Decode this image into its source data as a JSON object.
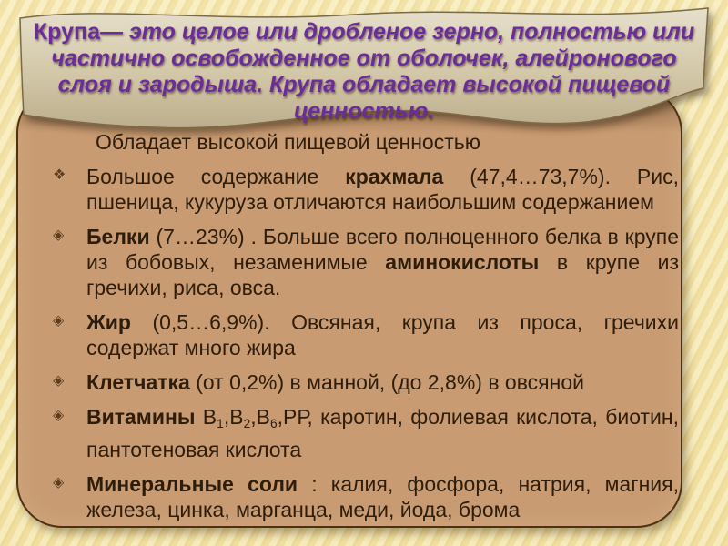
{
  "banner": {
    "term": "Крупа",
    "line1_rest": "— это целое или дробленое зерно, полностью или",
    "lines": [
      "частично освобожденное от оболочек, алейронового",
      "слоя и зародыша. Крупа обладает высокой пищевой",
      "ценностью."
    ]
  },
  "content": {
    "intro": "Обладает высокой пищевой ценностью",
    "items": [
      {
        "bullet": "❖",
        "segments": [
          {
            "t": "Большое содержание "
          },
          {
            "t": "крахмала",
            "b": true
          },
          {
            "t": " (47,4…73,7%). Рис, пшеница, кукуруза отличаются наибольшим содержанием"
          }
        ]
      },
      {
        "bullet": "◈",
        "segments": [
          {
            "t": "Белки",
            "b": true
          },
          {
            "t": " (7…23%) . Больше всего полноценного белка в крупе из бобовых, незаменимые "
          },
          {
            "t": "аминокислоты",
            "b": true
          },
          {
            "t": " в крупе из гречихи, риса, овса."
          }
        ]
      },
      {
        "bullet": "◈",
        "segments": [
          {
            "t": "Жир",
            "b": true
          },
          {
            "t": " (0,5…6,9%). Овсяная, крупа из проса, гречихи содержат много жира"
          }
        ]
      },
      {
        "bullet": "◈",
        "segments": [
          {
            "t": "Клетчатка",
            "b": true
          },
          {
            "t": " (от 0,2%) в манной, (до 2,8%) в овсяной"
          }
        ]
      },
      {
        "bullet": "◈",
        "segments": [
          {
            "t": "Витамины",
            "b": true
          },
          {
            "t": " В"
          },
          {
            "t": "1",
            "sub": true
          },
          {
            "t": ",В"
          },
          {
            "t": "2",
            "sub": true
          },
          {
            "t": ",В"
          },
          {
            "t": "6",
            "sub": true
          },
          {
            "t": ",РР, каротин, фолиевая кислота, биотин, пантотеновая кислота"
          }
        ]
      },
      {
        "bullet": "◈",
        "segments": [
          {
            "t": "Минеральные соли",
            "b": true
          },
          {
            "t": " : калия, фосфора, натрия, магния, железа, цинка, марганца, меди, йода, брома"
          }
        ]
      }
    ]
  },
  "colors": {
    "background": "#f3e7b2",
    "panel_fill": "#c89b72",
    "panel_border": "#4e3013",
    "banner_fill_top": "#e3dcc6",
    "banner_fill_bottom": "#bcae8d",
    "title_purple": "#6b2d9c",
    "body_text": "#2e1d0a",
    "bullet_brown": "#5f3c1c"
  }
}
